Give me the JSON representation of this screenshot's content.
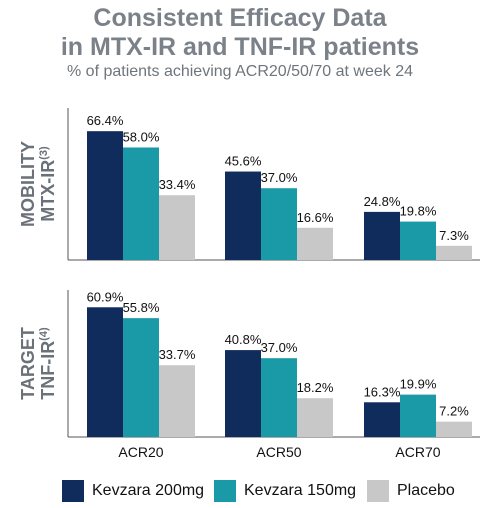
{
  "title_line1": "Consistent Efficacy Data",
  "title_line2": "in MTX-IR and TNF-IR patients",
  "subtitle": "% of patients achieving ACR20/50/70 at week 24",
  "colors": {
    "kevzara200": "#0f2c5c",
    "kevzara150": "#1a9aa6",
    "placebo": "#c8c8c8",
    "title": "#7b8189",
    "axis": "#555555"
  },
  "legend": [
    "Kevzara 200mg",
    "Kevzara 150mg",
    "Placebo"
  ],
  "chart_data": [
    {
      "type": "bar",
      "row_label_line1": "MOBILITY",
      "row_label_line2": "MTX-IR",
      "row_label_sup": "(3)",
      "categories": [
        "ACR20",
        "ACR50",
        "ACR70"
      ],
      "series": [
        {
          "name": "Kevzara 200mg",
          "values": [
            66.4,
            45.6,
            24.8
          ],
          "labels": [
            "66.4%",
            "45.6%",
            "24.8%"
          ]
        },
        {
          "name": "Kevzara 150mg",
          "values": [
            58.0,
            37.0,
            19.8
          ],
          "labels": [
            "58.0%",
            "37.0%",
            "19.8%"
          ]
        },
        {
          "name": "Placebo",
          "values": [
            33.4,
            16.6,
            7.3
          ],
          "labels": [
            "33.4%",
            "16.6%",
            "7.3%"
          ]
        }
      ],
      "ylim": [
        0,
        70
      ]
    },
    {
      "type": "bar",
      "row_label_line1": "TARGET",
      "row_label_line2": "TNF-IR",
      "row_label_sup": "(4)",
      "categories": [
        "ACR20",
        "ACR50",
        "ACR70"
      ],
      "series": [
        {
          "name": "Kevzara 200mg",
          "values": [
            60.9,
            40.8,
            16.3
          ],
          "labels": [
            "60.9%",
            "40.8%",
            "16.3%"
          ]
        },
        {
          "name": "Kevzara 150mg",
          "values": [
            55.8,
            37.0,
            19.9
          ],
          "labels": [
            "55.8%",
            "37.0%",
            "19.9%"
          ]
        },
        {
          "name": "Placebo",
          "values": [
            33.7,
            18.2,
            7.2
          ],
          "labels": [
            "33.7%",
            "18.2%",
            "7.2%"
          ]
        }
      ],
      "ylim": [
        0,
        70
      ]
    }
  ]
}
